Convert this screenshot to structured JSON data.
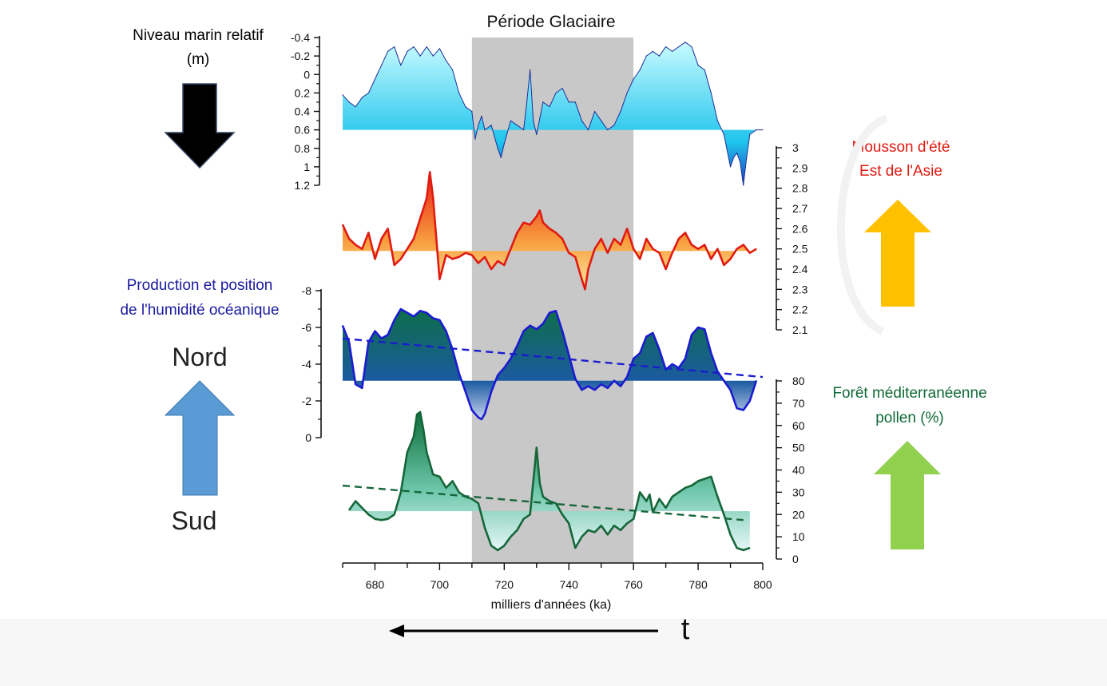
{
  "chart_data": [
    {
      "type": "area",
      "title": "Niveau marin relatif (m)",
      "title_lines": [
        "Niveau marin relatif",
        "(m)"
      ],
      "axis_side": "left",
      "inverted": true,
      "ylim": [
        1.2,
        -0.4
      ],
      "yticks": [
        "-0.4",
        "-0.2",
        "0",
        "0.2",
        "0.4",
        "0.6",
        "0.8",
        "1",
        "1.2"
      ],
      "baseline": 0.6,
      "colors": {
        "stroke": "#1c2f9a",
        "fill_top": "#c8fbff",
        "fill_mid": "#1fc4ec",
        "fill_low": "#1b3fc0"
      },
      "x": [
        670,
        672,
        674,
        676,
        678,
        680,
        682,
        684,
        686,
        688,
        690,
        692,
        694,
        696,
        698,
        700,
        702,
        704,
        706,
        708,
        710,
        711,
        712,
        713,
        714,
        716,
        718,
        719,
        720,
        722,
        724,
        726,
        727,
        728,
        729,
        730,
        732,
        734,
        736,
        738,
        740,
        742,
        744,
        746,
        748,
        750,
        752,
        754,
        756,
        758,
        760,
        762,
        764,
        766,
        768,
        770,
        772,
        774,
        776,
        778,
        780,
        782,
        784,
        786,
        788,
        790,
        791,
        792,
        793,
        794,
        795,
        796,
        798,
        800
      ],
      "y": [
        0.22,
        0.3,
        0.35,
        0.25,
        0.2,
        0.05,
        -0.1,
        -0.25,
        -0.3,
        -0.1,
        -0.25,
        -0.3,
        -0.2,
        -0.3,
        -0.2,
        -0.28,
        -0.15,
        -0.05,
        0.2,
        0.35,
        0.4,
        0.7,
        0.55,
        0.45,
        0.6,
        0.55,
        0.8,
        0.9,
        0.75,
        0.5,
        0.55,
        0.6,
        0.3,
        -0.05,
        0.5,
        0.65,
        0.3,
        0.35,
        0.2,
        0.15,
        0.3,
        0.3,
        0.5,
        0.6,
        0.4,
        0.5,
        0.6,
        0.55,
        0.4,
        0.2,
        0.05,
        -0.05,
        -0.2,
        -0.25,
        -0.2,
        -0.3,
        -0.25,
        -0.3,
        -0.35,
        -0.3,
        -0.1,
        -0.05,
        0.2,
        0.5,
        0.65,
        1.0,
        0.9,
        0.85,
        0.95,
        1.2,
        0.9,
        0.65,
        0.6,
        0.6
      ]
    },
    {
      "type": "area",
      "title": "Mousson d'été Est de l'Asie",
      "title_lines": [
        "Mousson d'été",
        "Est de l'Asie"
      ],
      "axis_side": "right",
      "ylim": [
        2.1,
        3
      ],
      "yticks": [
        "2.1",
        "2.2",
        "2.3",
        "2.4",
        "2.5",
        "2.6",
        "2.7",
        "2.8",
        "2.9",
        "3"
      ],
      "baseline": 2.49,
      "colors": {
        "stroke": "#e01b12",
        "fill_top": "#e81a12",
        "fill_mid": "#f8a040",
        "fill_low": "#fde7a0"
      },
      "x": [
        670,
        672,
        674,
        676,
        678,
        680,
        682,
        684,
        686,
        688,
        690,
        692,
        694,
        696,
        697,
        698,
        699,
        700,
        702,
        704,
        706,
        708,
        710,
        712,
        714,
        716,
        718,
        720,
        722,
        724,
        726,
        728,
        730,
        731,
        732,
        734,
        736,
        738,
        740,
        742,
        744,
        745,
        746,
        748,
        750,
        752,
        754,
        756,
        758,
        760,
        762,
        764,
        766,
        768,
        770,
        772,
        774,
        776,
        778,
        780,
        782,
        784,
        786,
        788,
        790,
        792,
        794,
        796,
        798
      ],
      "y": [
        2.62,
        2.55,
        2.52,
        2.5,
        2.58,
        2.45,
        2.55,
        2.6,
        2.42,
        2.45,
        2.5,
        2.55,
        2.65,
        2.75,
        2.88,
        2.75,
        2.55,
        2.35,
        2.47,
        2.45,
        2.46,
        2.48,
        2.47,
        2.43,
        2.46,
        2.4,
        2.44,
        2.42,
        2.5,
        2.58,
        2.63,
        2.62,
        2.66,
        2.69,
        2.63,
        2.6,
        2.58,
        2.55,
        2.48,
        2.46,
        2.35,
        2.3,
        2.4,
        2.5,
        2.55,
        2.48,
        2.55,
        2.52,
        2.6,
        2.5,
        2.45,
        2.55,
        2.5,
        2.48,
        2.4,
        2.48,
        2.55,
        2.58,
        2.52,
        2.5,
        2.52,
        2.45,
        2.5,
        2.42,
        2.45,
        2.5,
        2.52,
        2.48,
        2.5
      ]
    },
    {
      "type": "area",
      "title": "Production et position de l'humidité océanique",
      "title_lines": [
        "Production et position",
        "de l'humidité océanique"
      ],
      "axis_side": "left",
      "inverted": true,
      "ylim": [
        0,
        -8
      ],
      "yticks": [
        "0",
        "-2",
        "-4",
        "-6",
        "-8"
      ],
      "baseline": -3.1,
      "trend": [
        [
          670,
          -5.4
        ],
        [
          800,
          -3.3
        ]
      ],
      "colors": {
        "stroke": "#1b1bd0",
        "fill_top": "#0e6e48",
        "fill_mid": "#1a5aa0",
        "fill_low": "#c9d3ee",
        "trend": "#1b1bd0"
      },
      "x": [
        670,
        672,
        674,
        676,
        678,
        680,
        682,
        684,
        686,
        688,
        690,
        692,
        694,
        696,
        698,
        700,
        702,
        704,
        706,
        708,
        710,
        712,
        713,
        714,
        716,
        718,
        720,
        722,
        724,
        726,
        728,
        730,
        732,
        734,
        736,
        738,
        740,
        742,
        744,
        746,
        748,
        750,
        752,
        754,
        756,
        758,
        760,
        762,
        764,
        766,
        768,
        770,
        772,
        774,
        776,
        778,
        780,
        782,
        784,
        786,
        788,
        790,
        792,
        794,
        796,
        798
      ],
      "y": [
        -6.1,
        -5.2,
        -2.9,
        -2.7,
        -5.2,
        -5.8,
        -5.4,
        -5.6,
        -6.4,
        -7.0,
        -6.8,
        -6.6,
        -6.9,
        -6.8,
        -6.5,
        -6.4,
        -5.8,
        -4.8,
        -3.5,
        -2.5,
        -1.5,
        -1.1,
        -1.0,
        -1.3,
        -2.5,
        -3.4,
        -3.8,
        -4.3,
        -5.0,
        -5.8,
        -6.1,
        -5.9,
        -6.2,
        -6.8,
        -6.9,
        -5.8,
        -4.5,
        -3.2,
        -2.6,
        -2.8,
        -2.6,
        -2.9,
        -2.7,
        -3.1,
        -2.8,
        -3.3,
        -4.3,
        -4.6,
        -5.5,
        -5.7,
        -4.8,
        -3.7,
        -4.0,
        -3.8,
        -4.3,
        -5.6,
        -6.0,
        -5.9,
        -4.6,
        -3.6,
        -3.1,
        -2.6,
        -1.6,
        -1.5,
        -2.0,
        -3.1
      ]
    },
    {
      "type": "area",
      "title": "Forêt méditerranéenne pollen (%)",
      "title_lines": [
        "Forêt méditerranéenne",
        "pollen (%)"
      ],
      "axis_side": "right",
      "ylim": [
        0,
        80
      ],
      "yticks": [
        "0",
        "10",
        "20",
        "30",
        "40",
        "50",
        "60",
        "70",
        "80"
      ],
      "baseline": 21.5,
      "trend": [
        [
          670,
          33
        ],
        [
          794,
          17.5
        ]
      ],
      "colors": {
        "stroke": "#16663a",
        "fill_top": "#0e6e3a",
        "fill_mid": "#6ac5a8",
        "fill_low": "#e4f6f7",
        "trend": "#16663a"
      },
      "x": [
        672,
        674,
        676,
        678,
        680,
        682,
        684,
        686,
        688,
        690,
        692,
        693,
        694,
        695,
        696,
        698,
        700,
        702,
        704,
        706,
        708,
        710,
        712,
        714,
        716,
        718,
        720,
        722,
        724,
        726,
        728,
        729,
        730,
        731,
        732,
        734,
        736,
        738,
        740,
        742,
        744,
        746,
        748,
        750,
        752,
        754,
        756,
        758,
        760,
        762,
        764,
        765,
        766,
        768,
        770,
        772,
        774,
        776,
        778,
        780,
        782,
        784,
        786,
        788,
        790,
        792,
        794,
        796
      ],
      "y": [
        22,
        26,
        23,
        20,
        18,
        17.5,
        18,
        20,
        30,
        48,
        55,
        65,
        66,
        58,
        48,
        38,
        37,
        32,
        35,
        30,
        28,
        27,
        25,
        14,
        6,
        4,
        6,
        10,
        13,
        18,
        20,
        35,
        50,
        34,
        28,
        26,
        25,
        20,
        16,
        5,
        10,
        13,
        12,
        15,
        11,
        15,
        13,
        16,
        18,
        30,
        26,
        29,
        21,
        27,
        23,
        28,
        30,
        32,
        33,
        35,
        36,
        37,
        28,
        20,
        11,
        5,
        4,
        5
      ]
    }
  ],
  "period": {
    "label": "Période Glaciaire",
    "x_start": 710,
    "x_end": 760,
    "color": "#c8c8c8"
  },
  "xaxis": {
    "xlabel": "milliers d'années (ka)",
    "ticks": [
      "680",
      "700",
      "720",
      "740",
      "760",
      "780",
      "800"
    ],
    "xlim": [
      670,
      800
    ]
  },
  "labels": {
    "nord": "Nord",
    "sud": "Sud",
    "time": "t"
  },
  "arrows": {
    "sea_level": {
      "direction": "down",
      "color": "#000000"
    },
    "monsoon": {
      "direction": "up",
      "color": "#ffc000"
    },
    "humidity": {
      "direction": "up",
      "color": "#5b9bd5"
    },
    "forest": {
      "direction": "up",
      "color": "#92d050"
    },
    "time": {
      "direction": "left",
      "color": "#000000"
    }
  },
  "text_colors": {
    "sea_level": "#000000",
    "monsoon": "#e01b12",
    "humidity": "#1a1aa0",
    "forest": "#0f6a36"
  }
}
